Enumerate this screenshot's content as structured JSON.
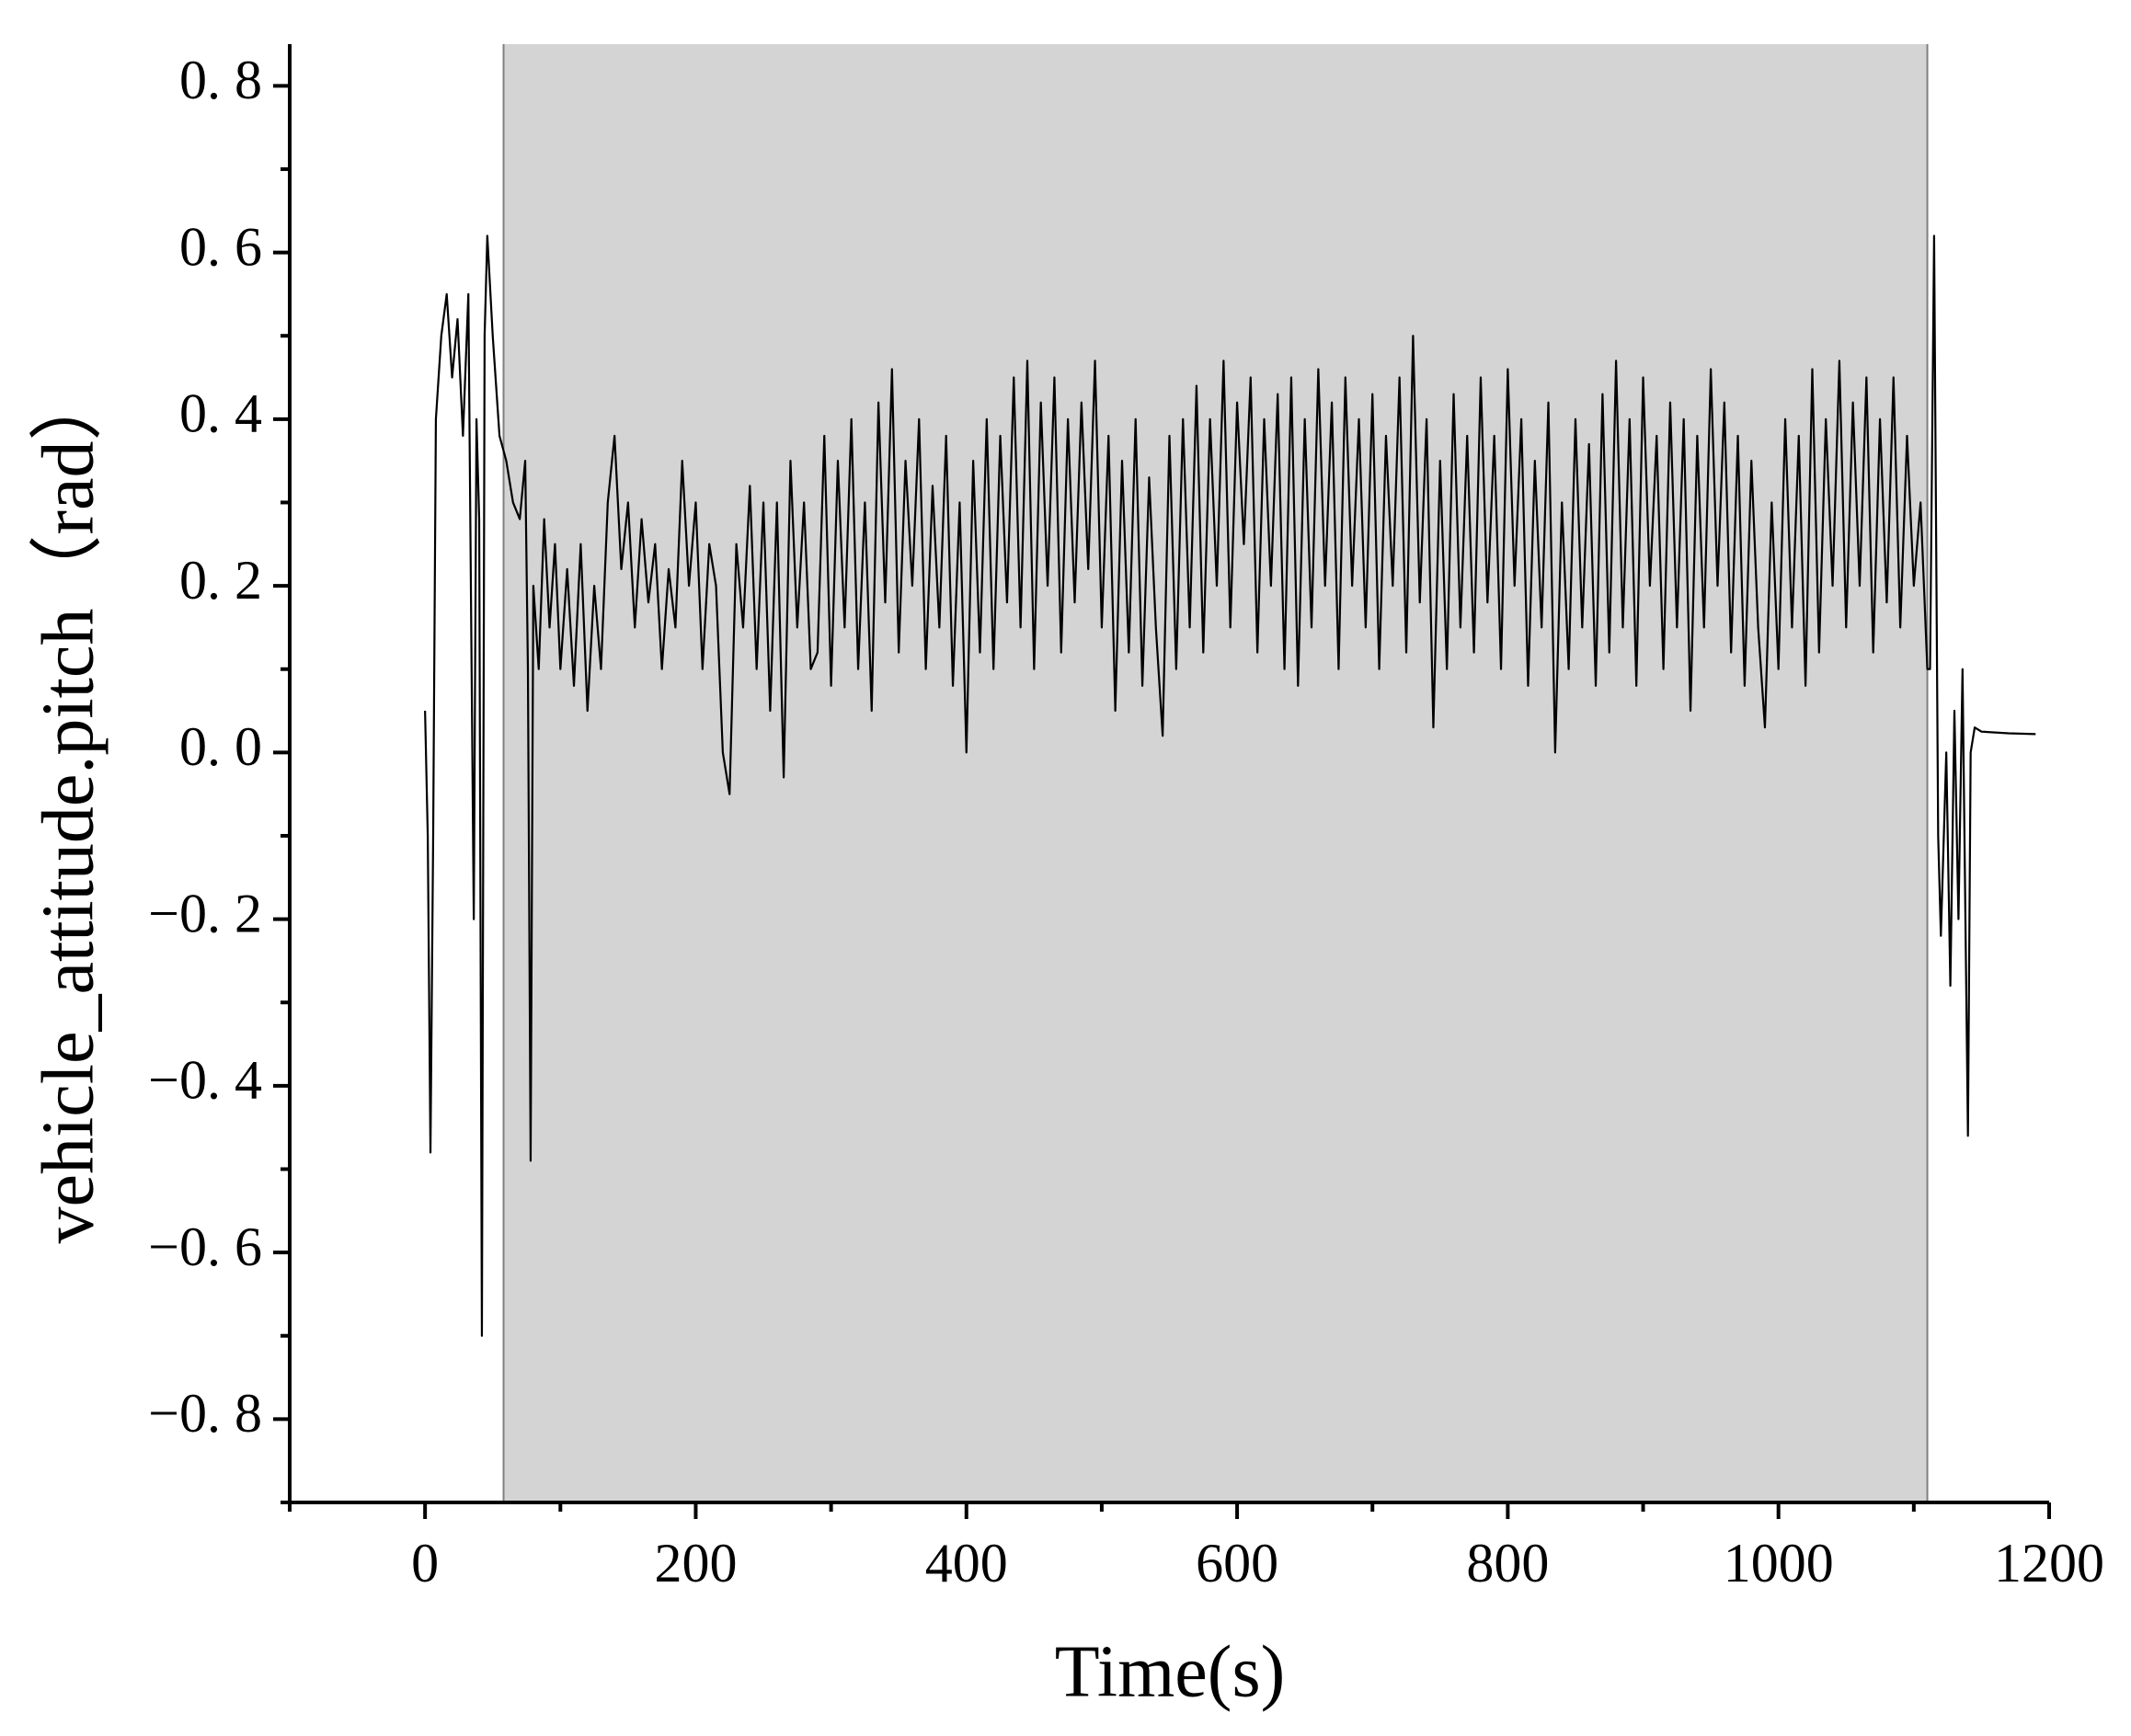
{
  "chart_data": {
    "type": "line",
    "x_label": "Time(s)",
    "y_label": "vehicle_attitude.pitch（rad）",
    "xlim": [
      -100,
      1200
    ],
    "ylim": [
      -0.9,
      0.85
    ],
    "xticks": [
      0,
      200,
      400,
      600,
      800,
      1000,
      1200
    ],
    "xminorticks": [
      -100,
      100,
      300,
      500,
      700,
      900,
      1100
    ],
    "yticks": [
      {
        "value": -0.8,
        "label": "−0. 8"
      },
      {
        "value": -0.6,
        "label": "−0. 6"
      },
      {
        "value": -0.4,
        "label": "−0. 4"
      },
      {
        "value": -0.2,
        "label": "−0. 2"
      },
      {
        "value": 0.0,
        "label": "0. 0"
      },
      {
        "value": 0.2,
        "label": "0. 2"
      },
      {
        "value": 0.4,
        "label": "0. 4"
      },
      {
        "value": 0.6,
        "label": "0. 6"
      },
      {
        "value": 0.8,
        "label": "0. 8"
      }
    ],
    "yminorticks": [
      -0.9,
      -0.7,
      -0.5,
      -0.3,
      -0.1,
      0.1,
      0.3,
      0.5,
      0.7
    ],
    "shaded_span": [
      58,
      1110
    ],
    "shade_color": "#d4d4d4",
    "grid": false,
    "series": [
      {
        "color": "#000000",
        "x": [
          0,
          2,
          4,
          6,
          8,
          12,
          16,
          20,
          24,
          28,
          32,
          36,
          38,
          40,
          42,
          44,
          46,
          50,
          55,
          60,
          65,
          70,
          74,
          76,
          78,
          80,
          84,
          88,
          92,
          96,
          100,
          105,
          110,
          115,
          120,
          125,
          130,
          135,
          140,
          145,
          150,
          155,
          160,
          165,
          170,
          175,
          180,
          185,
          190,
          195,
          200,
          205,
          210,
          215,
          220,
          225,
          230,
          235,
          240,
          245,
          250,
          255,
          260,
          265,
          270,
          275,
          280,
          285,
          290,
          295,
          300,
          305,
          310,
          315,
          320,
          325,
          330,
          335,
          340,
          345,
          350,
          355,
          360,
          365,
          370,
          375,
          380,
          385,
          390,
          395,
          400,
          405,
          410,
          415,
          420,
          425,
          430,
          435,
          440,
          445,
          450,
          455,
          460,
          465,
          470,
          475,
          480,
          485,
          490,
          495,
          500,
          505,
          510,
          515,
          520,
          525,
          530,
          535,
          540,
          545,
          550,
          555,
          560,
          565,
          570,
          575,
          580,
          585,
          590,
          595,
          600,
          605,
          610,
          615,
          620,
          625,
          630,
          635,
          640,
          645,
          650,
          655,
          660,
          665,
          670,
          675,
          680,
          685,
          690,
          695,
          700,
          705,
          710,
          715,
          720,
          725,
          730,
          735,
          740,
          745,
          750,
          755,
          760,
          765,
          770,
          775,
          780,
          785,
          790,
          795,
          800,
          805,
          810,
          815,
          820,
          825,
          830,
          835,
          840,
          845,
          850,
          855,
          860,
          865,
          870,
          875,
          880,
          885,
          890,
          895,
          900,
          905,
          910,
          915,
          920,
          925,
          930,
          935,
          940,
          945,
          950,
          955,
          960,
          965,
          970,
          975,
          980,
          985,
          990,
          995,
          1000,
          1005,
          1010,
          1015,
          1020,
          1025,
          1030,
          1035,
          1040,
          1045,
          1050,
          1055,
          1060,
          1065,
          1070,
          1075,
          1080,
          1085,
          1090,
          1095,
          1100,
          1105,
          1110,
          1112,
          1115,
          1118,
          1120,
          1124,
          1127,
          1130,
          1133,
          1136,
          1140,
          1142,
          1145,
          1150,
          1170,
          1190
        ],
        "values": [
          0.05,
          -0.1,
          -0.48,
          -0.1,
          0.4,
          0.5,
          0.55,
          0.45,
          0.52,
          0.38,
          0.55,
          -0.2,
          0.4,
          0.28,
          -0.7,
          0.5,
          0.62,
          0.5,
          0.38,
          0.35,
          0.3,
          0.28,
          0.35,
          0.1,
          -0.49,
          0.2,
          0.1,
          0.28,
          0.15,
          0.25,
          0.1,
          0.22,
          0.08,
          0.25,
          0.05,
          0.2,
          0.1,
          0.3,
          0.38,
          0.22,
          0.3,
          0.15,
          0.28,
          0.18,
          0.25,
          0.1,
          0.22,
          0.15,
          0.35,
          0.2,
          0.3,
          0.1,
          0.25,
          0.2,
          0.0,
          -0.05,
          0.25,
          0.15,
          0.32,
          0.1,
          0.3,
          0.05,
          0.3,
          -0.03,
          0.35,
          0.15,
          0.3,
          0.1,
          0.12,
          0.38,
          0.08,
          0.35,
          0.15,
          0.4,
          0.1,
          0.3,
          0.05,
          0.42,
          0.18,
          0.46,
          0.12,
          0.35,
          0.2,
          0.4,
          0.1,
          0.32,
          0.15,
          0.38,
          0.08,
          0.3,
          0.0,
          0.35,
          0.12,
          0.4,
          0.1,
          0.38,
          0.18,
          0.45,
          0.15,
          0.47,
          0.1,
          0.42,
          0.2,
          0.45,
          0.12,
          0.4,
          0.18,
          0.42,
          0.22,
          0.47,
          0.15,
          0.38,
          0.05,
          0.35,
          0.12,
          0.4,
          0.08,
          0.33,
          0.15,
          0.02,
          0.38,
          0.1,
          0.4,
          0.15,
          0.44,
          0.12,
          0.4,
          0.2,
          0.47,
          0.15,
          0.42,
          0.25,
          0.45,
          0.12,
          0.4,
          0.2,
          0.43,
          0.1,
          0.45,
          0.08,
          0.4,
          0.15,
          0.46,
          0.2,
          0.42,
          0.1,
          0.45,
          0.2,
          0.4,
          0.15,
          0.43,
          0.1,
          0.38,
          0.2,
          0.45,
          0.12,
          0.5,
          0.18,
          0.4,
          0.03,
          0.35,
          0.1,
          0.43,
          0.15,
          0.38,
          0.12,
          0.45,
          0.18,
          0.38,
          0.1,
          0.46,
          0.2,
          0.4,
          0.08,
          0.35,
          0.15,
          0.42,
          0.0,
          0.3,
          0.1,
          0.4,
          0.15,
          0.37,
          0.08,
          0.43,
          0.12,
          0.47,
          0.15,
          0.4,
          0.08,
          0.45,
          0.2,
          0.38,
          0.1,
          0.42,
          0.15,
          0.4,
          0.05,
          0.38,
          0.15,
          0.46,
          0.2,
          0.42,
          0.12,
          0.38,
          0.08,
          0.35,
          0.15,
          0.03,
          0.3,
          0.1,
          0.4,
          0.15,
          0.38,
          0.08,
          0.46,
          0.12,
          0.4,
          0.2,
          0.47,
          0.15,
          0.42,
          0.2,
          0.45,
          0.12,
          0.4,
          0.18,
          0.45,
          0.15,
          0.38,
          0.2,
          0.3,
          0.1,
          0.1,
          0.62,
          -0.1,
          -0.22,
          0.0,
          -0.28,
          0.05,
          -0.2,
          0.1,
          -0.46,
          0.0,
          0.03,
          0.025,
          0.023,
          0.022
        ]
      }
    ]
  }
}
